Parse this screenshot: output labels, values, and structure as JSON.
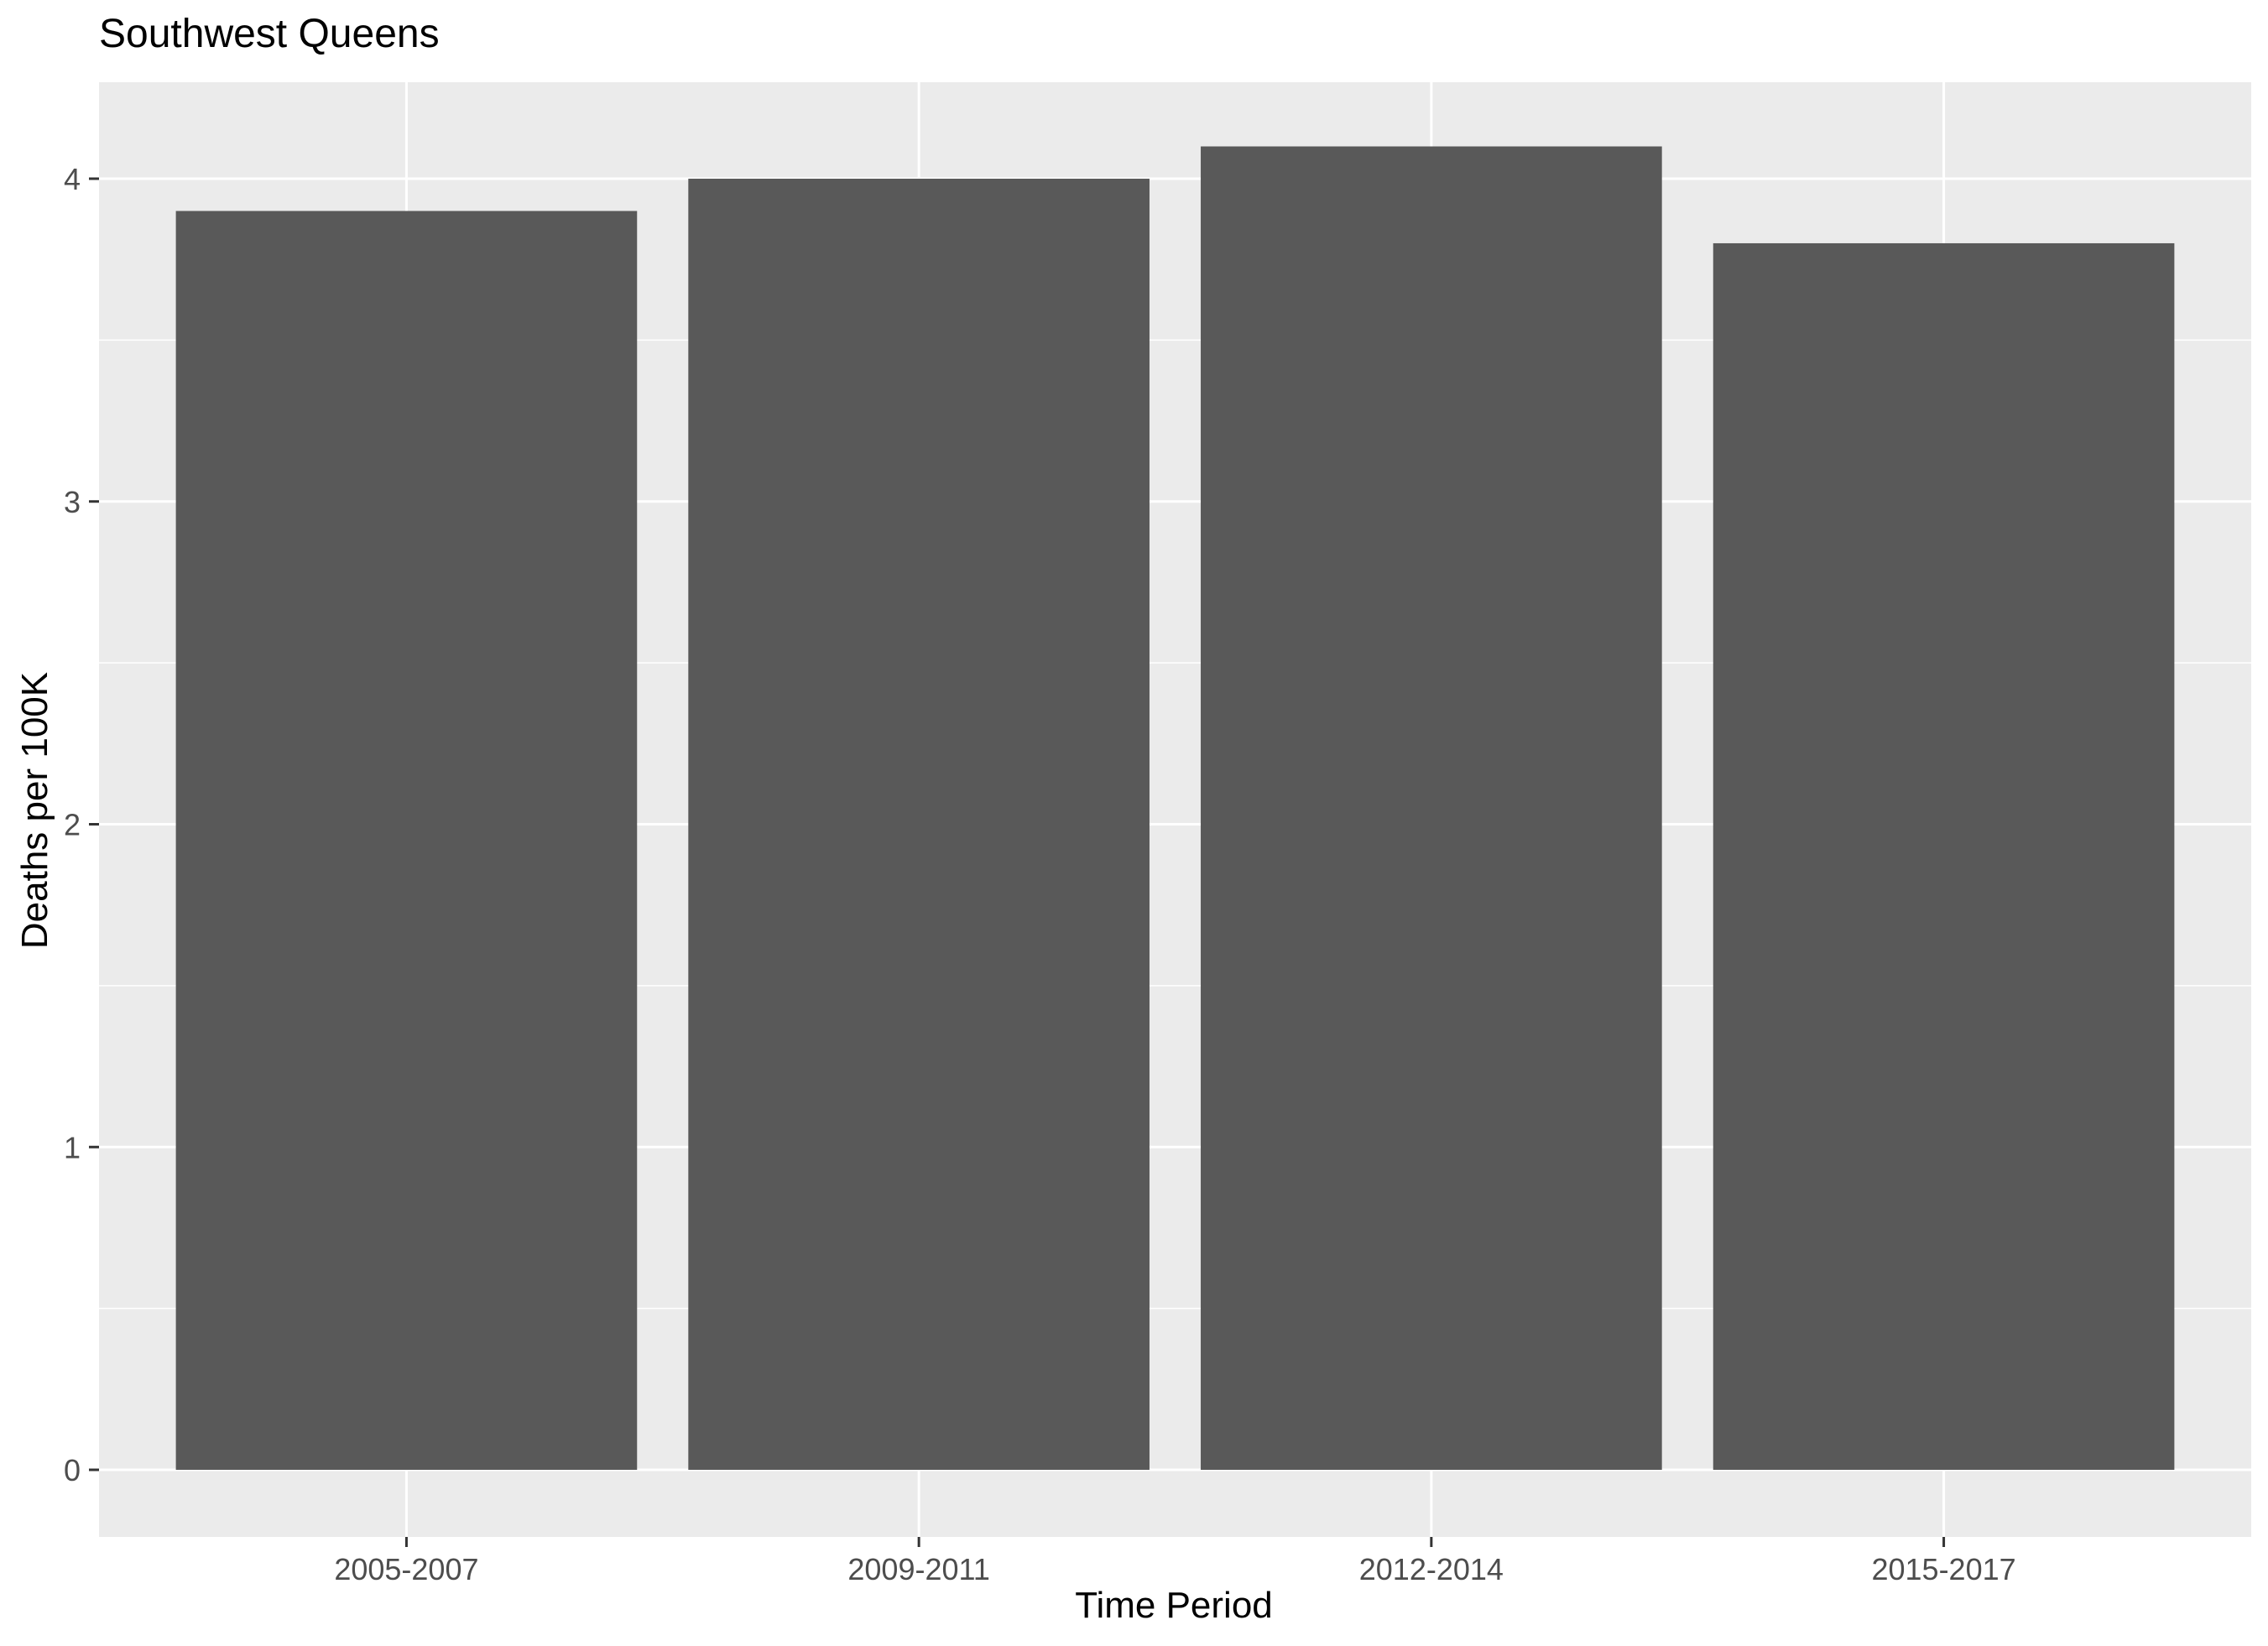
{
  "chart_data": {
    "type": "bar",
    "title": "Southwest Queens",
    "xlabel": "Time Period",
    "ylabel": "Deaths per 100K",
    "categories": [
      "2005-2007",
      "2009-2011",
      "2012-2014",
      "2015-2017"
    ],
    "values": [
      3.9,
      4.0,
      4.1,
      3.8
    ],
    "ylim": [
      -0.2,
      4.3
    ],
    "yticks": [
      "0",
      "1",
      "2",
      "3",
      "4"
    ],
    "grid": true,
    "colors": {
      "bar": "#595959",
      "panel": "#ebebeb",
      "grid": "#ffffff",
      "tick_text": "#4d4d4d"
    }
  }
}
